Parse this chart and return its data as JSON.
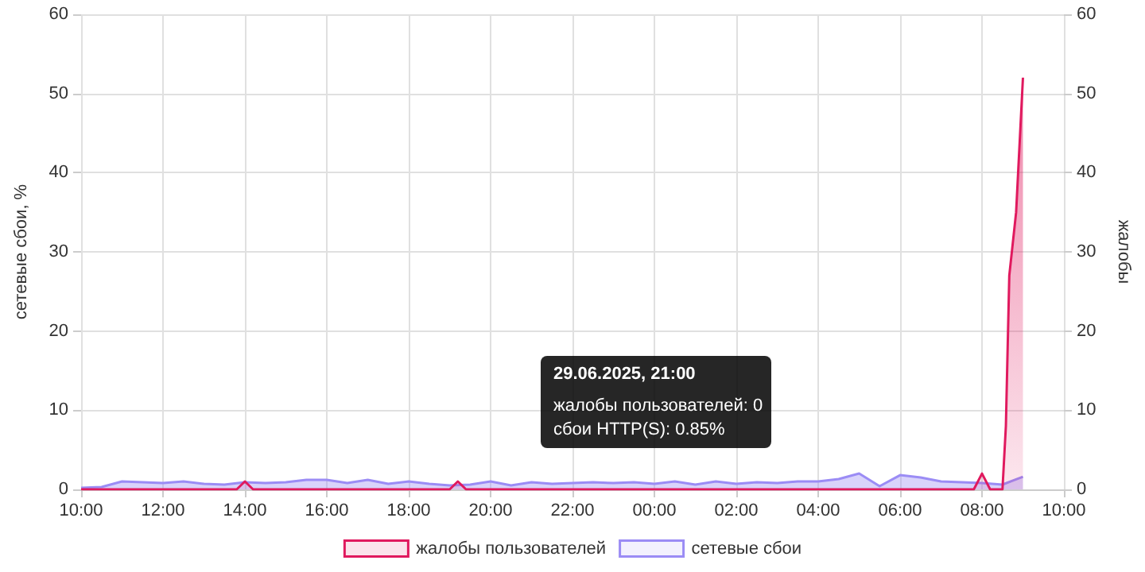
{
  "chart_data": {
    "type": "area",
    "ylabel": "сетевые сбои, %",
    "y2label": "жалобы",
    "xlim": [
      "2025-06-29T10:00",
      "2025-06-30T10:00"
    ],
    "xticks": [
      {
        "value": "2025-06-29T10:00",
        "label": "10:00"
      },
      {
        "value": "2025-06-29T12:00",
        "label": "12:00"
      },
      {
        "value": "2025-06-29T14:00",
        "label": "14:00"
      },
      {
        "value": "2025-06-29T16:00",
        "label": "16:00"
      },
      {
        "value": "2025-06-29T18:00",
        "label": "18:00"
      },
      {
        "value": "2025-06-29T20:00",
        "label": "20:00"
      },
      {
        "value": "2025-06-29T22:00",
        "label": "22:00"
      },
      {
        "value": "2025-06-30T00:00",
        "label": "00:00"
      },
      {
        "value": "2025-06-30T02:00",
        "label": "02:00"
      },
      {
        "value": "2025-06-30T04:00",
        "label": "04:00"
      },
      {
        "value": "2025-06-30T06:00",
        "label": "06:00"
      },
      {
        "value": "2025-06-30T08:00",
        "label": "08:00"
      },
      {
        "value": "2025-06-30T10:00",
        "label": "10:00"
      }
    ],
    "ylim": [
      0,
      60
    ],
    "yticks": [
      0,
      10,
      20,
      30,
      40,
      50,
      60
    ],
    "y2lim": [
      0,
      60
    ],
    "y2ticks": [
      0,
      10,
      20,
      30,
      40,
      50,
      60
    ],
    "grid": true,
    "legend": "bottom",
    "marker": "none",
    "series": [
      {
        "name": "жалобы пользователей",
        "color": "#e0195e",
        "axis": "y2",
        "x": [
          "2025-06-29T10:00",
          "2025-06-29T13:48",
          "2025-06-29T14:00",
          "2025-06-29T14:12",
          "2025-06-29T19:00",
          "2025-06-29T19:12",
          "2025-06-29T19:24",
          "2025-06-30T07:48",
          "2025-06-30T08:00",
          "2025-06-30T08:12",
          "2025-06-30T08:30",
          "2025-06-30T08:35",
          "2025-06-30T08:40",
          "2025-06-30T08:50",
          "2025-06-30T09:00"
        ],
        "values": [
          0,
          0,
          1,
          0,
          0,
          1,
          0,
          0,
          2,
          0,
          0,
          8,
          27,
          35,
          52
        ]
      },
      {
        "name": "сетевые сбои",
        "color": "#9b8cf5",
        "axis": "y",
        "x": [
          "2025-06-29T10:00",
          "2025-06-29T10:30",
          "2025-06-29T11:00",
          "2025-06-29T11:30",
          "2025-06-29T12:00",
          "2025-06-29T12:30",
          "2025-06-29T13:00",
          "2025-06-29T13:30",
          "2025-06-29T14:00",
          "2025-06-29T14:30",
          "2025-06-29T15:00",
          "2025-06-29T15:30",
          "2025-06-29T16:00",
          "2025-06-29T16:30",
          "2025-06-29T17:00",
          "2025-06-29T17:30",
          "2025-06-29T18:00",
          "2025-06-29T18:30",
          "2025-06-29T19:00",
          "2025-06-29T19:30",
          "2025-06-29T20:00",
          "2025-06-29T20:30",
          "2025-06-29T21:00",
          "2025-06-29T21:30",
          "2025-06-29T22:00",
          "2025-06-29T22:30",
          "2025-06-29T23:00",
          "2025-06-29T23:30",
          "2025-06-30T00:00",
          "2025-06-30T00:30",
          "2025-06-30T01:00",
          "2025-06-30T01:30",
          "2025-06-30T02:00",
          "2025-06-30T02:30",
          "2025-06-30T03:00",
          "2025-06-30T03:30",
          "2025-06-30T04:00",
          "2025-06-30T04:30",
          "2025-06-30T05:00",
          "2025-06-30T05:30",
          "2025-06-30T06:00",
          "2025-06-30T06:30",
          "2025-06-30T07:00",
          "2025-06-30T07:30",
          "2025-06-30T08:00",
          "2025-06-30T08:30",
          "2025-06-30T09:00"
        ],
        "values": [
          0.2,
          0.3,
          1.0,
          0.9,
          0.8,
          1.0,
          0.7,
          0.6,
          0.9,
          0.8,
          0.9,
          1.2,
          1.2,
          0.8,
          1.2,
          0.7,
          1.0,
          0.7,
          0.5,
          0.6,
          1.0,
          0.5,
          0.9,
          0.7,
          0.8,
          0.9,
          0.8,
          0.9,
          0.7,
          1.0,
          0.6,
          1.0,
          0.7,
          0.9,
          0.8,
          1.0,
          1.0,
          1.3,
          2.0,
          0.4,
          1.8,
          1.5,
          1.0,
          0.9,
          0.8,
          0.6,
          1.6
        ]
      }
    ],
    "annotations": [
      "29.06.2025, 21:00",
      "жалобы пользователей: 0",
      "сбои HTTP(S): 0.85%"
    ]
  }
}
